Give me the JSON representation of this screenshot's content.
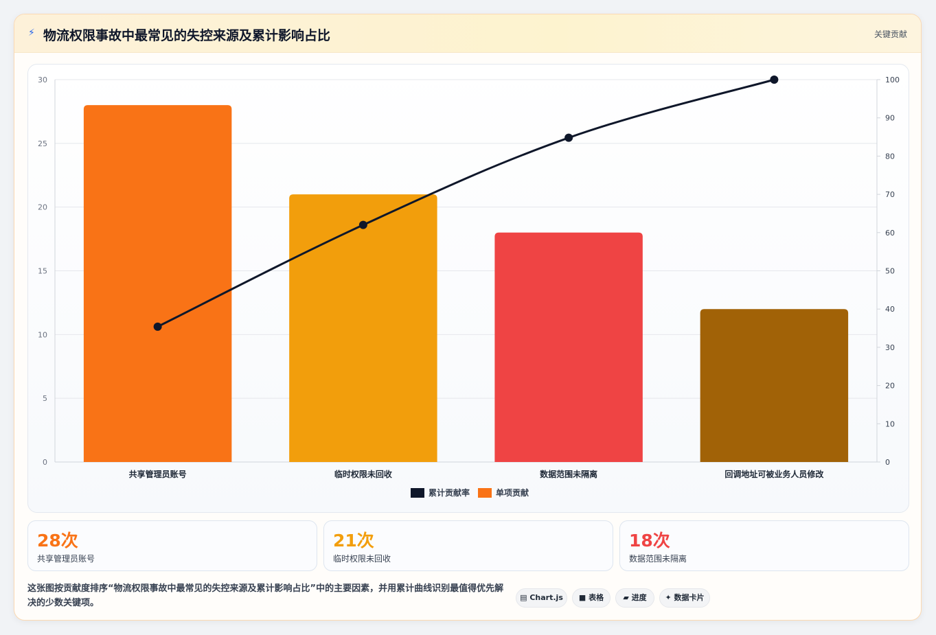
{
  "header": {
    "icon": "lightning-icon",
    "title": "物流权限事故中最常见的失控来源及累计影响占比",
    "tag": "关键贡献"
  },
  "chart_data": {
    "type": "bar",
    "categories": [
      "共享管理员账号",
      "临时权限未回收",
      "数据范围未隔离",
      "回调地址可被业务人员修改"
    ],
    "series": [
      {
        "name": "单项贡献",
        "type": "bar",
        "axis": "left",
        "values": [
          28,
          21,
          18,
          12
        ],
        "colors": [
          "#f97316",
          "#f29e0c",
          "#ef4444",
          "#a16207"
        ]
      },
      {
        "name": "累计贡献率",
        "type": "line",
        "axis": "right",
        "values": [
          35.4,
          62.0,
          84.8,
          100
        ],
        "color": "#0f172a"
      }
    ],
    "ylim": [
      0,
      30
    ],
    "y_ticks": [
      0,
      5,
      10,
      15,
      20,
      25,
      30
    ],
    "y2lim": [
      0,
      100
    ],
    "y2_ticks": [
      0,
      10,
      20,
      30,
      40,
      50,
      60,
      70,
      80,
      90,
      100
    ],
    "legend": [
      {
        "label": "累计贡献率",
        "color": "#0f172a"
      },
      {
        "label": "单项贡献",
        "color": "#f97316"
      }
    ],
    "legend_position": "bottom",
    "grid": true
  },
  "stats": [
    {
      "value": "28次",
      "label": "共享管理员账号",
      "color": "#f97316"
    },
    {
      "value": "21次",
      "label": "临时权限未回收",
      "color": "#f29e0c"
    },
    {
      "value": "18次",
      "label": "数据范围未隔离",
      "color": "#ef4444"
    }
  ],
  "description": "这张图按贡献度排序“物流权限事故中最常见的失控来源及累计影响占比”中的主要因素，并用累计曲线识别最值得优先解决的少数关键项。",
  "chips": [
    {
      "icon": "▤",
      "label": "Chart.js"
    },
    {
      "icon": "■",
      "label": "表格"
    },
    {
      "icon": "▰",
      "label": "进度"
    },
    {
      "icon": "✦",
      "label": "数据卡片"
    }
  ]
}
